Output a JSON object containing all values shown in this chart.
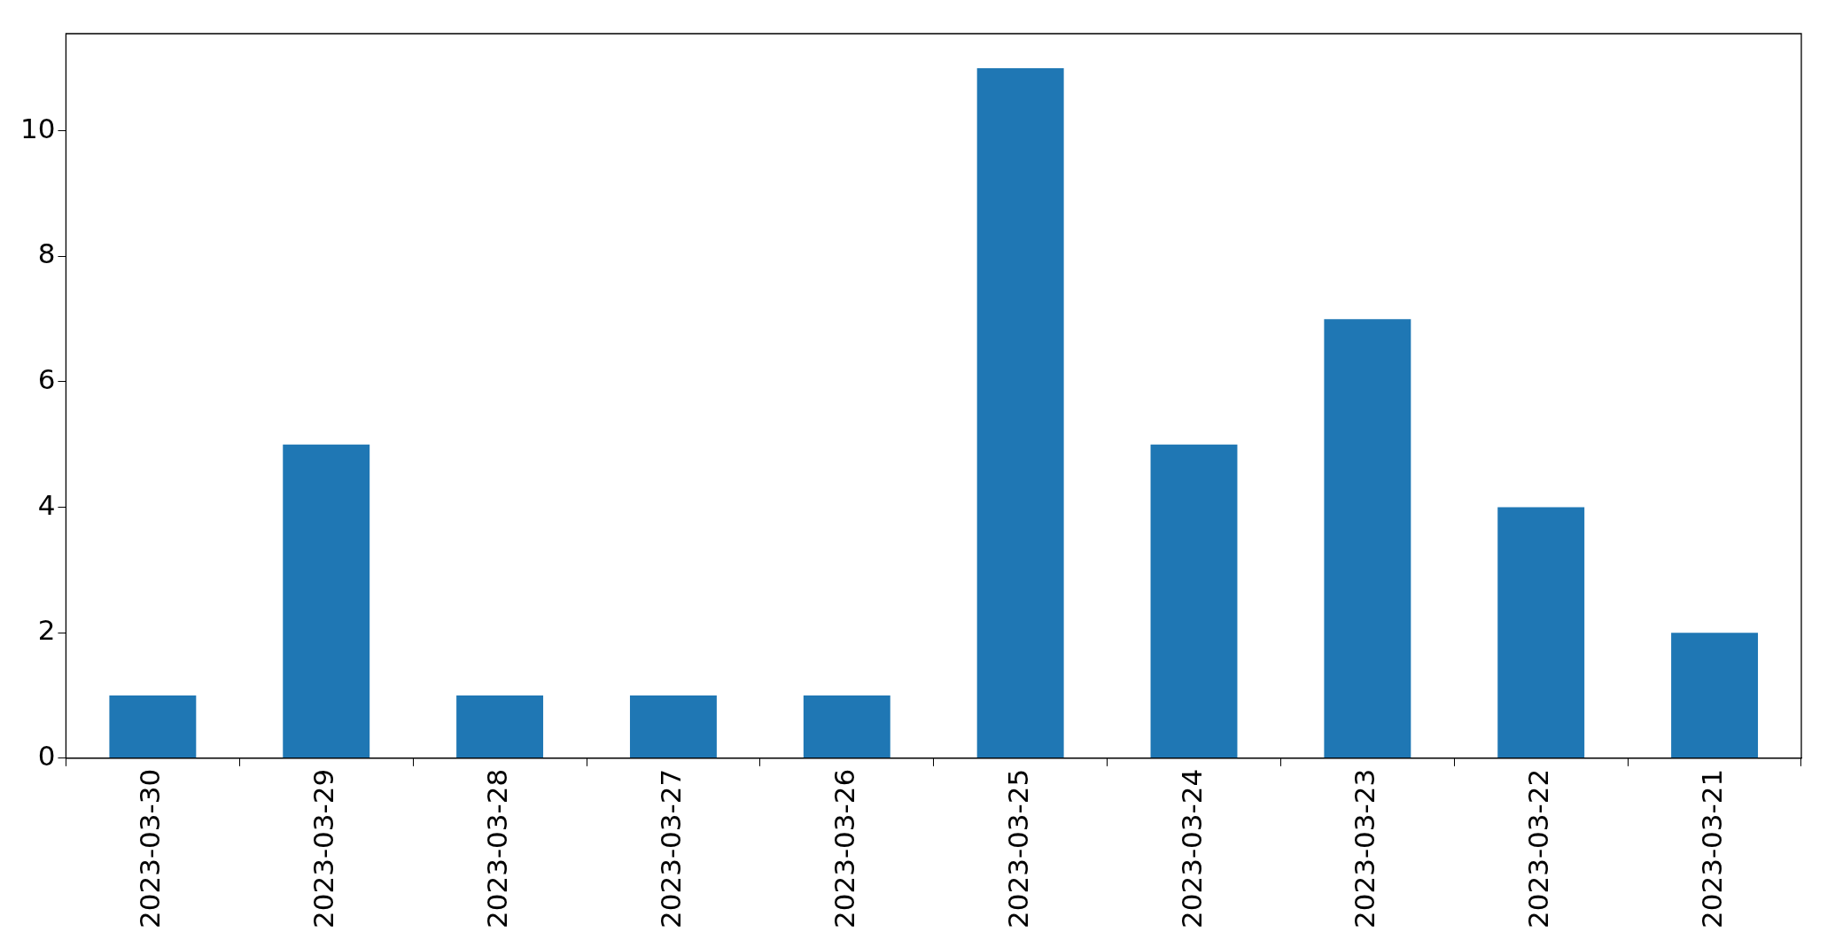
{
  "chart_data": {
    "type": "bar",
    "categories": [
      "2023-03-30",
      "2023-03-29",
      "2023-03-28",
      "2023-03-27",
      "2023-03-26",
      "2023-03-25",
      "2023-03-24",
      "2023-03-23",
      "2023-03-22",
      "2023-03-21"
    ],
    "values": [
      1,
      5,
      1,
      1,
      1,
      11,
      5,
      7,
      4,
      2
    ],
    "color": "#1f77b4",
    "ylim": [
      0,
      11.55
    ],
    "yticks": [
      0,
      2,
      4,
      6,
      8,
      10
    ],
    "grid": false,
    "legend": false
  }
}
